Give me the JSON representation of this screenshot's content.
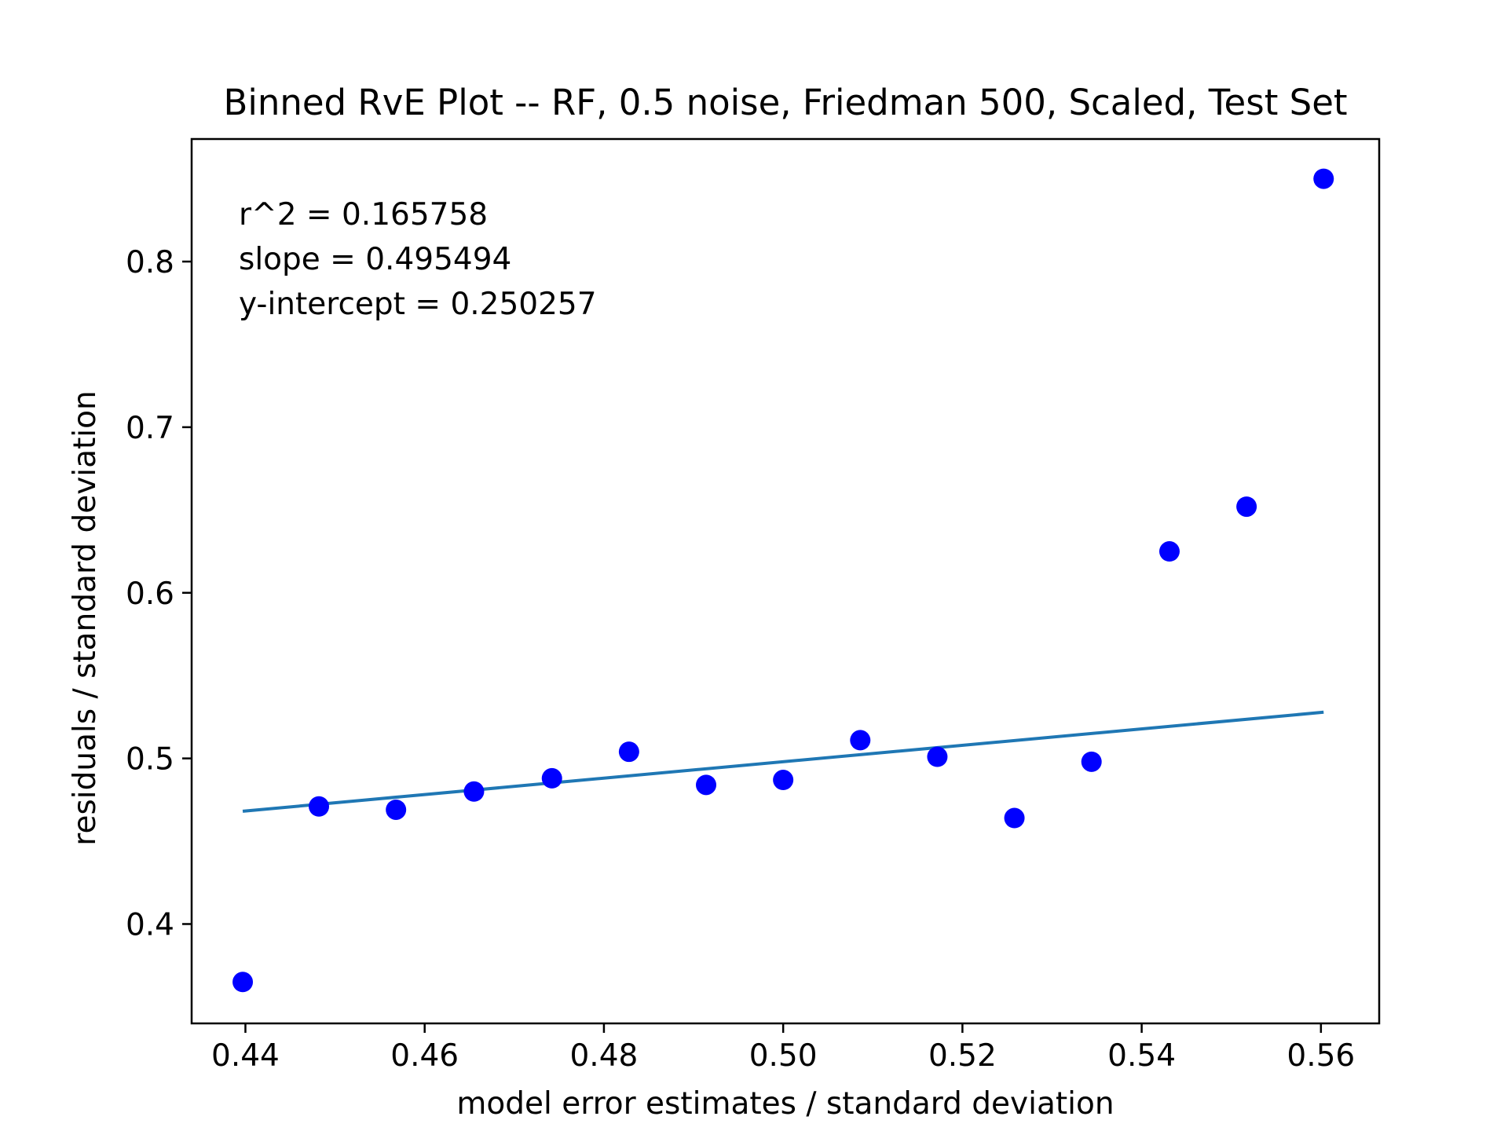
{
  "chart_data": {
    "type": "scatter",
    "title": "Binned RvE Plot -- RF, 0.5 noise, Friedman 500, Scaled, Test Set",
    "xlabel": "model error estimates / standard deviation",
    "ylabel": "residuals / standard deviation",
    "xlim": [
      0.434,
      0.5665
    ],
    "ylim": [
      0.34,
      0.874
    ],
    "xticks": [
      0.44,
      0.46,
      0.48,
      0.5,
      0.52,
      0.54,
      0.56
    ],
    "xtick_labels": [
      "0.44",
      "0.46",
      "0.48",
      "0.50",
      "0.52",
      "0.54",
      "0.56"
    ],
    "yticks": [
      0.4,
      0.5,
      0.6,
      0.7,
      0.8
    ],
    "ytick_labels": [
      "0.4",
      "0.5",
      "0.6",
      "0.7",
      "0.8"
    ],
    "grid": false,
    "points": {
      "color": "#0000ff",
      "x": [
        0.4397,
        0.4482,
        0.4568,
        0.4655,
        0.4742,
        0.4828,
        0.4914,
        0.5,
        0.5086,
        0.5172,
        0.5258,
        0.5344,
        0.5431,
        0.5517,
        0.5603
      ],
      "y": [
        0.365,
        0.471,
        0.469,
        0.48,
        0.488,
        0.504,
        0.484,
        0.487,
        0.511,
        0.501,
        0.464,
        0.498,
        0.625,
        0.652,
        0.85
      ]
    },
    "fit_line": {
      "color": "#1f77b4",
      "x": [
        0.4397,
        0.5603
      ],
      "y": [
        0.4681,
        0.5279
      ]
    },
    "annotations": [
      "r^2 = 0.165758",
      "slope = 0.495494",
      "y-intercept = 0.250257"
    ]
  }
}
